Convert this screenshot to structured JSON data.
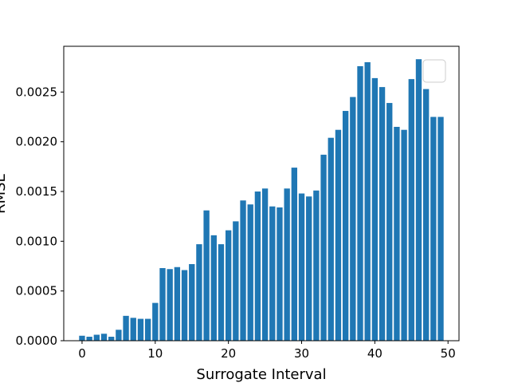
{
  "chart_data": {
    "type": "bar",
    "title": "",
    "xlabel": "Surrogate Interval",
    "ylabel": "RMSE",
    "xlim": [
      -2.5,
      51.5
    ],
    "ylim": [
      0,
      0.00296
    ],
    "xticks": [
      0,
      10,
      20,
      30,
      40,
      50
    ],
    "xtick_labels": [
      "0",
      "10",
      "20",
      "30",
      "40",
      "50"
    ],
    "yticks": [
      0,
      0.0005,
      0.001,
      0.0015,
      0.002,
      0.0025
    ],
    "ytick_labels": [
      "0.0000",
      "0.0005",
      "0.0010",
      "0.0015",
      "0.0020",
      "0.0025"
    ],
    "grid": false,
    "legend": "top-right, empty",
    "bar_color": "#1f77b4",
    "x": [
      0,
      1,
      2,
      3,
      4,
      5,
      6,
      7,
      8,
      9,
      10,
      11,
      12,
      13,
      14,
      15,
      16,
      17,
      18,
      19,
      20,
      21,
      22,
      23,
      24,
      25,
      26,
      27,
      28,
      29,
      30,
      31,
      32,
      33,
      34,
      35,
      36,
      37,
      38,
      39,
      40,
      41,
      42,
      43,
      44,
      45,
      46,
      47,
      48,
      49
    ],
    "values": [
      5e-05,
      4e-05,
      6e-05,
      7e-05,
      4e-05,
      0.00011,
      0.00025,
      0.00023,
      0.00022,
      0.00022,
      0.00038,
      0.00073,
      0.00072,
      0.00074,
      0.00071,
      0.00077,
      0.00097,
      0.00131,
      0.00106,
      0.00097,
      0.00111,
      0.0012,
      0.00141,
      0.00137,
      0.0015,
      0.00153,
      0.00135,
      0.00134,
      0.00153,
      0.00174,
      0.00148,
      0.00145,
      0.00151,
      0.00187,
      0.00204,
      0.00212,
      0.00231,
      0.00245,
      0.00276,
      0.0028,
      0.00264,
      0.00255,
      0.00239,
      0.00215,
      0.00212,
      0.00263,
      0.00283,
      0.00253,
      0.00225,
      0.00225
    ]
  }
}
